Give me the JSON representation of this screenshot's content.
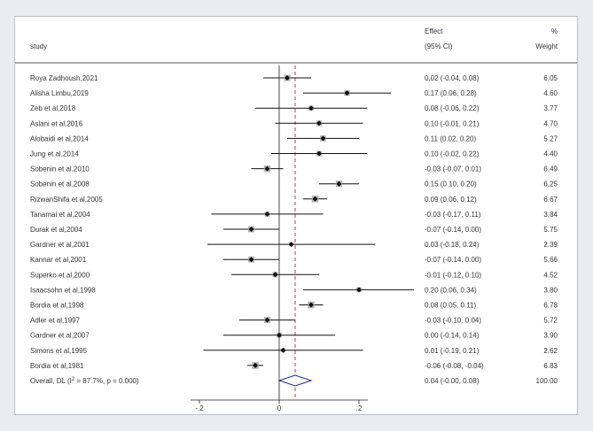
{
  "chart_data": {
    "type": "forest",
    "header": {
      "study_label": "study",
      "effect_label_line1": "Effect",
      "effect_label_line2": "(95% CI)",
      "weight_label_line1": "%",
      "weight_label_line2": "Weight"
    },
    "xlim": [
      -0.2,
      0.2
    ],
    "pooled_effect": 0.04,
    "x_ticks": [
      {
        "value": -0.2,
        "label": "-.2"
      },
      {
        "value": 0,
        "label": "0"
      },
      {
        "value": 0.2,
        "label": ".2"
      }
    ],
    "studies": [
      {
        "name": "Roya Zadhoush,2021",
        "effect": 0.02,
        "lower": -0.04,
        "upper": 0.08,
        "ci_text": "0.02 (-0.04, 0.08)",
        "weight": 6.05,
        "weight_text": "6.05"
      },
      {
        "name": "Alisha Limbu,2019",
        "effect": 0.17,
        "lower": 0.06,
        "upper": 0.28,
        "ci_text": "0.17 (0.06, 0.28)",
        "weight": 4.6,
        "weight_text": "4.60"
      },
      {
        "name": "Zeb et al,2018",
        "effect": 0.08,
        "lower": -0.06,
        "upper": 0.22,
        "ci_text": "0.08 (-0.06, 0.22)",
        "weight": 3.77,
        "weight_text": "3.77"
      },
      {
        "name": "Aslani et al,2016",
        "effect": 0.1,
        "lower": -0.01,
        "upper": 0.21,
        "ci_text": "0.10 (-0.01, 0.21)",
        "weight": 4.7,
        "weight_text": "4.70"
      },
      {
        "name": "Alobaidi et al,2014",
        "effect": 0.11,
        "lower": 0.02,
        "upper": 0.2,
        "ci_text": "0.11 (0.02, 0.20)",
        "weight": 5.27,
        "weight_text": "5.27"
      },
      {
        "name": "Jung et al,2014",
        "effect": 0.1,
        "lower": -0.02,
        "upper": 0.22,
        "ci_text": "0.10 (-0.02, 0.22)",
        "weight": 4.4,
        "weight_text": "4.40"
      },
      {
        "name": "Sobenin et al,2010",
        "effect": -0.03,
        "lower": -0.07,
        "upper": 0.01,
        "ci_text": "-0.03 (-0.07, 0.01)",
        "weight": 6.49,
        "weight_text": "6.49"
      },
      {
        "name": "Sobenin et al,2008",
        "effect": 0.15,
        "lower": 0.1,
        "upper": 0.2,
        "ci_text": "0.15 (0.10, 0.20)",
        "weight": 6.25,
        "weight_text": "6.25"
      },
      {
        "name": "RizwanShifa et al,2005",
        "effect": 0.09,
        "lower": 0.06,
        "upper": 0.12,
        "ci_text": "0.09 (0.06, 0.12)",
        "weight": 6.67,
        "weight_text": "6.67"
      },
      {
        "name": "Tanamai et al,2004",
        "effect": -0.03,
        "lower": -0.17,
        "upper": 0.11,
        "ci_text": "-0.03 (-0.17, 0.11)",
        "weight": 3.84,
        "weight_text": "3.84"
      },
      {
        "name": "Durak et al,2004",
        "effect": -0.07,
        "lower": -0.14,
        "upper": 0.0,
        "ci_text": "-0.07 (-0.14, 0.00)",
        "weight": 5.75,
        "weight_text": "5.75"
      },
      {
        "name": "Gardner et al,2001",
        "effect": 0.03,
        "lower": -0.18,
        "upper": 0.24,
        "ci_text": "0.03 (-0.18, 0.24)",
        "weight": 2.39,
        "weight_text": "2.39"
      },
      {
        "name": "Kannar et al,2001",
        "effect": -0.07,
        "lower": -0.14,
        "upper": 0.0,
        "ci_text": "-0.07 (-0.14, 0.00)",
        "weight": 5.66,
        "weight_text": "5.66"
      },
      {
        "name": "Superko et al,2000",
        "effect": -0.01,
        "lower": -0.12,
        "upper": 0.1,
        "ci_text": "-0.01 (-0.12, 0.10)",
        "weight": 4.52,
        "weight_text": "4.52"
      },
      {
        "name": "Isaacsohn et al,1998",
        "effect": 0.2,
        "lower": 0.06,
        "upper": 0.34,
        "ci_text": "0.20 (0.06, 0.34)",
        "weight": 3.8,
        "weight_text": "3.80"
      },
      {
        "name": "Bordia et al,1998",
        "effect": 0.08,
        "lower": 0.05,
        "upper": 0.11,
        "ci_text": "0.08 (0.05, 0.11)",
        "weight": 6.78,
        "weight_text": "6.78"
      },
      {
        "name": "Adler et al,1997",
        "effect": -0.03,
        "lower": -0.1,
        "upper": 0.04,
        "ci_text": "-0.03 (-0.10, 0.04)",
        "weight": 5.72,
        "weight_text": "5.72"
      },
      {
        "name": "Gardner et al,2007",
        "effect": 0.0,
        "lower": -0.14,
        "upper": 0.14,
        "ci_text": "0.00 (-0.14, 0.14)",
        "weight": 3.9,
        "weight_text": "3.90"
      },
      {
        "name": "Simons et al,1995",
        "effect": 0.01,
        "lower": -0.19,
        "upper": 0.21,
        "ci_text": "0.01 (-0.19, 0.21)",
        "weight": 2.62,
        "weight_text": "2.62"
      },
      {
        "name": "Bordia et al,1981",
        "effect": -0.06,
        "lower": -0.08,
        "upper": -0.04,
        "ci_text": "-0.06 (-0.08, -0.04)",
        "weight": 6.83,
        "weight_text": "6.83"
      }
    ],
    "overall": {
      "label_prefix": "Overall, DL (I",
      "label_sup": "2",
      "label_suffix": " = 87.7%, p = 0.000)",
      "effect": 0.04,
      "lower": -0.0,
      "upper": 0.08,
      "ci_text": "0.04 (-0.00, 0.08)",
      "weight_text": "100.00"
    }
  }
}
